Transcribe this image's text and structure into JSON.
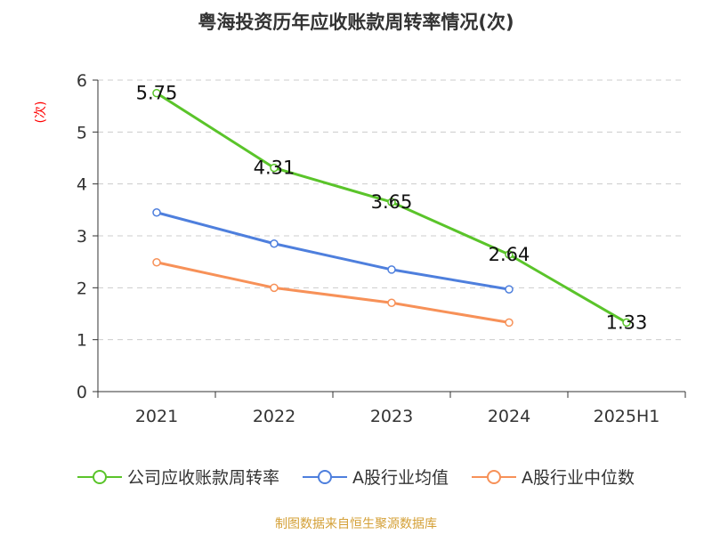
{
  "title": "粤海投资历年应收账款周转率情况(次)",
  "source": "制图数据来自恒生聚源数据库",
  "colors": {
    "source_text": "#d4a037",
    "axis": "#333333",
    "grid": "#cccccc",
    "ylabel": "#ff0000"
  },
  "chart_data": {
    "type": "line",
    "title": "粤海投资历年应收账款周转率情况(次)",
    "xlabel": "",
    "ylabel": "(次)",
    "categories": [
      "2021",
      "2022",
      "2023",
      "2024",
      "2025H1"
    ],
    "ylim": [
      0,
      6
    ],
    "yticks": [
      0,
      1,
      2,
      3,
      4,
      5,
      6
    ],
    "grid": true,
    "legend_position": "bottom",
    "series": [
      {
        "name": "公司应收账款周转率",
        "color": "#5ac42a",
        "values": [
          5.75,
          4.31,
          3.65,
          2.64,
          1.33
        ],
        "labels": [
          "5.75",
          "4.31",
          "3.65",
          "2.64",
          "1.33"
        ]
      },
      {
        "name": "A股行业均值",
        "color": "#4e7fdd",
        "values": [
          3.45,
          2.85,
          2.35,
          1.97,
          null
        ]
      },
      {
        "name": "A股行业中位数",
        "color": "#f79158",
        "values": [
          2.49,
          2.0,
          1.71,
          1.33,
          null
        ]
      }
    ]
  }
}
